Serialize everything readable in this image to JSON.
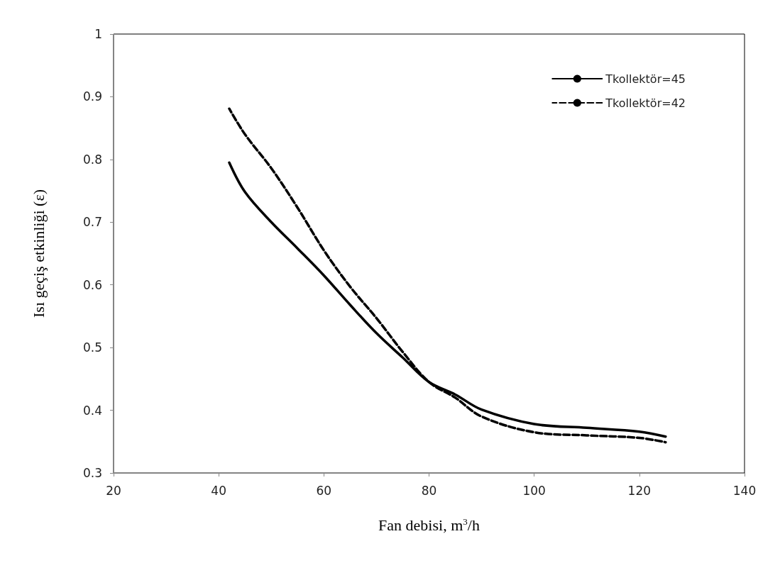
{
  "chart_data": {
    "type": "line",
    "xlabel": "Fan debisi, m$^{3}$/h",
    "ylabel": "Isı geçiş etkinliği (ε)",
    "xlim": [
      20,
      140
    ],
    "xticks": [
      20,
      40,
      60,
      80,
      100,
      120,
      140
    ],
    "ylim": [
      0.3,
      1
    ],
    "yticks": [
      0.3,
      0.4,
      0.5,
      0.6,
      0.7,
      0.8,
      0.9,
      1
    ],
    "grid": false,
    "legend": "top right",
    "marker": "none",
    "series": [
      {
        "name": "Tkollektör=45",
        "color": "#000000",
        "line_style": "solid",
        "x": [
          42,
          45,
          50,
          55,
          60,
          65,
          70,
          75,
          80,
          85,
          90,
          100,
          110,
          120,
          125
        ],
        "values": [
          0.795,
          0.748,
          0.7,
          0.658,
          0.615,
          0.568,
          0.523,
          0.484,
          0.445,
          0.425,
          0.401,
          0.378,
          0.372,
          0.366,
          0.358
        ]
      },
      {
        "name": "Tkollektör=42",
        "color": "#000000",
        "line_style": "dashed",
        "x": [
          42,
          45,
          50,
          55,
          60,
          65,
          70,
          75,
          80,
          85,
          90,
          100,
          110,
          120,
          125
        ],
        "values": [
          0.881,
          0.84,
          0.786,
          0.723,
          0.655,
          0.597,
          0.547,
          0.493,
          0.445,
          0.42,
          0.39,
          0.365,
          0.36,
          0.356,
          0.349
        ]
      }
    ]
  }
}
